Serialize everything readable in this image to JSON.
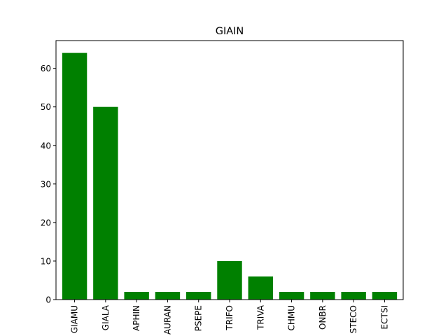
{
  "chart_data": {
    "type": "bar",
    "title": "GIAIN",
    "xlabel": "",
    "ylabel": "",
    "categories": [
      "GIAMU",
      "GIALA",
      "APHIN",
      "AURAN",
      "PSEPE",
      "TRIFO",
      "TRIVA",
      "CHMU",
      "ONBR",
      "STECO",
      "ECTSI"
    ],
    "values": [
      64,
      50,
      2,
      2,
      2,
      10,
      6,
      2,
      2,
      2,
      2
    ],
    "ylim": [
      0,
      67.2
    ],
    "yticks": [
      0,
      10,
      20,
      30,
      40,
      50,
      60
    ],
    "bar_color": "#008000",
    "grid": false,
    "legend": "none"
  }
}
